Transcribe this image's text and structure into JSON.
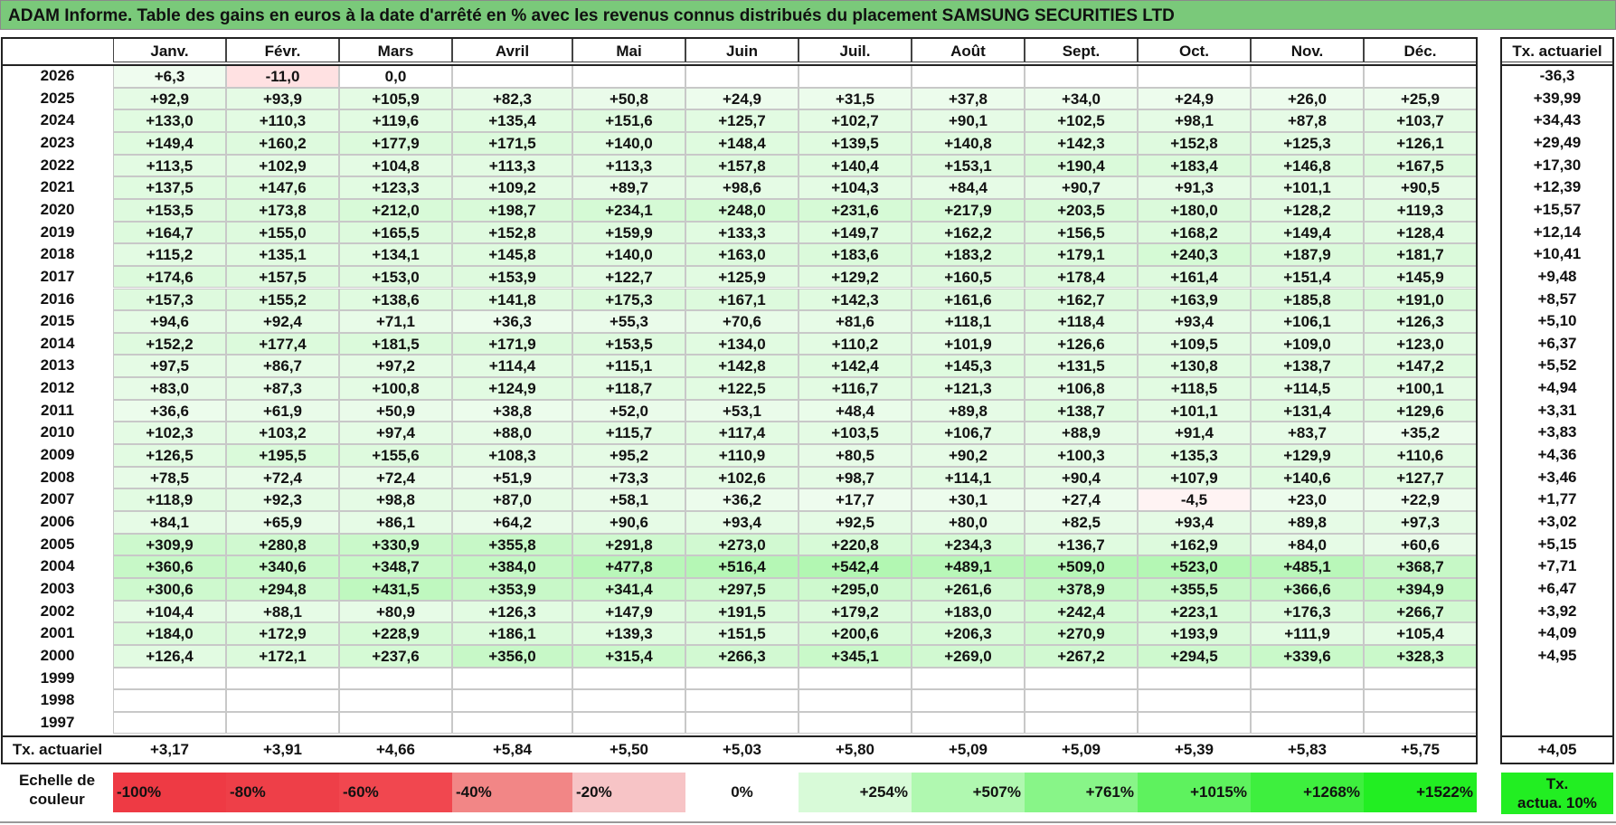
{
  "title": "ADAM Informe. Table des gains en euros à la date d'arrêté en % avec les revenus connus distribués du placement SAMSUNG SECURITIES LTD",
  "months": [
    "Janv.",
    "Févr.",
    "Mars",
    "Avril",
    "Mai",
    "Juin",
    "Juil.",
    "Août",
    "Sept.",
    "Oct.",
    "Nov.",
    "Déc."
  ],
  "rate_header": "Tx. actuariel",
  "rows": [
    {
      "year": "2026",
      "values": [
        "+6,3",
        "-11,0",
        "0,0",
        "",
        "",
        "",
        "",
        "",
        "",
        "",
        "",
        ""
      ],
      "rate": "-36,3"
    },
    {
      "year": "2025",
      "values": [
        "+92,9",
        "+93,9",
        "+105,9",
        "+82,3",
        "+50,8",
        "+24,9",
        "+31,5",
        "+37,8",
        "+34,0",
        "+24,9",
        "+26,0",
        "+25,9"
      ],
      "rate": "+39,99"
    },
    {
      "year": "2024",
      "values": [
        "+133,0",
        "+110,3",
        "+119,6",
        "+135,4",
        "+151,6",
        "+125,7",
        "+102,7",
        "+90,1",
        "+102,5",
        "+98,1",
        "+87,8",
        "+103,7"
      ],
      "rate": "+34,43"
    },
    {
      "year": "2023",
      "values": [
        "+149,4",
        "+160,2",
        "+177,9",
        "+171,5",
        "+140,0",
        "+148,4",
        "+139,5",
        "+140,8",
        "+142,3",
        "+152,8",
        "+125,3",
        "+126,1"
      ],
      "rate": "+29,49"
    },
    {
      "year": "2022",
      "values": [
        "+113,5",
        "+102,9",
        "+104,8",
        "+113,3",
        "+113,3",
        "+157,8",
        "+140,4",
        "+153,1",
        "+190,4",
        "+183,4",
        "+146,8",
        "+167,5"
      ],
      "rate": "+17,30"
    },
    {
      "year": "2021",
      "values": [
        "+137,5",
        "+147,6",
        "+123,3",
        "+109,2",
        "+89,7",
        "+98,6",
        "+104,3",
        "+84,4",
        "+90,7",
        "+91,3",
        "+101,1",
        "+90,5"
      ],
      "rate": "+12,39"
    },
    {
      "year": "2020",
      "values": [
        "+153,5",
        "+173,8",
        "+212,0",
        "+198,7",
        "+234,1",
        "+248,0",
        "+231,6",
        "+217,9",
        "+203,5",
        "+180,0",
        "+128,2",
        "+119,3"
      ],
      "rate": "+15,57"
    },
    {
      "year": "2019",
      "values": [
        "+164,7",
        "+155,0",
        "+165,5",
        "+152,8",
        "+159,9",
        "+133,3",
        "+149,7",
        "+162,2",
        "+156,5",
        "+168,2",
        "+149,4",
        "+128,4"
      ],
      "rate": "+12,14"
    },
    {
      "year": "2018",
      "values": [
        "+115,2",
        "+135,1",
        "+134,1",
        "+145,8",
        "+140,0",
        "+163,0",
        "+183,6",
        "+183,2",
        "+179,1",
        "+240,3",
        "+187,9",
        "+181,7"
      ],
      "rate": "+10,41"
    },
    {
      "year": "2017",
      "values": [
        "+174,6",
        "+157,5",
        "+153,0",
        "+153,9",
        "+122,7",
        "+125,9",
        "+129,2",
        "+160,5",
        "+178,4",
        "+161,4",
        "+151,4",
        "+145,9"
      ],
      "rate": "+9,48"
    },
    {
      "year": "2016",
      "values": [
        "+157,3",
        "+155,2",
        "+138,6",
        "+141,8",
        "+175,3",
        "+167,1",
        "+142,3",
        "+161,6",
        "+162,7",
        "+163,9",
        "+185,8",
        "+191,0"
      ],
      "rate": "+8,57"
    },
    {
      "year": "2015",
      "values": [
        "+94,6",
        "+92,4",
        "+71,1",
        "+36,3",
        "+55,3",
        "+70,6",
        "+81,6",
        "+118,1",
        "+118,4",
        "+93,4",
        "+106,1",
        "+126,3"
      ],
      "rate": "+5,10"
    },
    {
      "year": "2014",
      "values": [
        "+152,2",
        "+177,4",
        "+181,5",
        "+171,9",
        "+153,5",
        "+134,0",
        "+110,2",
        "+101,9",
        "+126,6",
        "+109,5",
        "+109,0",
        "+123,0"
      ],
      "rate": "+6,37"
    },
    {
      "year": "2013",
      "values": [
        "+97,5",
        "+86,7",
        "+97,2",
        "+114,4",
        "+115,1",
        "+142,8",
        "+142,4",
        "+145,3",
        "+131,5",
        "+130,8",
        "+138,7",
        "+147,2"
      ],
      "rate": "+5,52"
    },
    {
      "year": "2012",
      "values": [
        "+83,0",
        "+87,3",
        "+100,8",
        "+124,9",
        "+118,7",
        "+122,5",
        "+116,7",
        "+121,3",
        "+106,8",
        "+118,5",
        "+114,5",
        "+100,1"
      ],
      "rate": "+4,94"
    },
    {
      "year": "2011",
      "values": [
        "+36,6",
        "+61,9",
        "+50,9",
        "+38,8",
        "+52,0",
        "+53,1",
        "+48,4",
        "+89,8",
        "+138,7",
        "+101,1",
        "+131,4",
        "+129,6"
      ],
      "rate": "+3,31"
    },
    {
      "year": "2010",
      "values": [
        "+102,3",
        "+103,2",
        "+97,4",
        "+88,0",
        "+115,7",
        "+117,4",
        "+103,5",
        "+106,7",
        "+88,9",
        "+91,4",
        "+83,7",
        "+35,2"
      ],
      "rate": "+3,83"
    },
    {
      "year": "2009",
      "values": [
        "+126,5",
        "+195,5",
        "+155,6",
        "+108,3",
        "+95,2",
        "+110,9",
        "+80,5",
        "+90,2",
        "+100,3",
        "+135,3",
        "+129,9",
        "+110,6"
      ],
      "rate": "+4,36"
    },
    {
      "year": "2008",
      "values": [
        "+78,5",
        "+72,4",
        "+72,4",
        "+51,9",
        "+73,3",
        "+102,6",
        "+98,7",
        "+114,1",
        "+90,4",
        "+107,9",
        "+140,6",
        "+127,7"
      ],
      "rate": "+3,46"
    },
    {
      "year": "2007",
      "values": [
        "+118,9",
        "+92,3",
        "+98,8",
        "+87,0",
        "+58,1",
        "+36,2",
        "+17,7",
        "+30,1",
        "+27,4",
        "-4,5",
        "+23,0",
        "+22,9"
      ],
      "rate": "+1,77"
    },
    {
      "year": "2006",
      "values": [
        "+84,1",
        "+65,9",
        "+86,1",
        "+64,2",
        "+90,6",
        "+93,4",
        "+92,5",
        "+80,0",
        "+82,5",
        "+93,4",
        "+89,8",
        "+97,3"
      ],
      "rate": "+3,02"
    },
    {
      "year": "2005",
      "values": [
        "+309,9",
        "+280,8",
        "+330,9",
        "+355,8",
        "+291,8",
        "+273,0",
        "+220,8",
        "+234,3",
        "+136,7",
        "+162,9",
        "+84,0",
        "+60,6"
      ],
      "rate": "+5,15"
    },
    {
      "year": "2004",
      "values": [
        "+360,6",
        "+340,6",
        "+348,7",
        "+384,0",
        "+477,8",
        "+516,4",
        "+542,4",
        "+489,1",
        "+509,0",
        "+523,0",
        "+485,1",
        "+368,7"
      ],
      "rate": "+7,71"
    },
    {
      "year": "2003",
      "values": [
        "+300,6",
        "+294,8",
        "+431,5",
        "+353,9",
        "+341,4",
        "+297,5",
        "+295,0",
        "+261,6",
        "+378,9",
        "+355,5",
        "+366,6",
        "+394,9"
      ],
      "rate": "+6,47"
    },
    {
      "year": "2002",
      "values": [
        "+104,4",
        "+88,1",
        "+80,9",
        "+126,3",
        "+147,9",
        "+191,5",
        "+179,2",
        "+183,0",
        "+242,4",
        "+223,1",
        "+176,3",
        "+266,7"
      ],
      "rate": "+3,92"
    },
    {
      "year": "2001",
      "values": [
        "+184,0",
        "+172,9",
        "+228,9",
        "+186,1",
        "+139,3",
        "+151,5",
        "+200,6",
        "+206,3",
        "+270,9",
        "+193,9",
        "+111,9",
        "+105,4"
      ],
      "rate": "+4,09"
    },
    {
      "year": "2000",
      "values": [
        "+126,4",
        "+172,1",
        "+237,6",
        "+356,0",
        "+315,4",
        "+266,3",
        "+345,1",
        "+269,0",
        "+267,2",
        "+294,5",
        "+339,6",
        "+328,3"
      ],
      "rate": "+4,95"
    },
    {
      "year": "1999",
      "values": [
        "",
        "",
        "",
        "",
        "",
        "",
        "",
        "",
        "",
        "",
        "",
        ""
      ],
      "rate": ""
    },
    {
      "year": "1998",
      "values": [
        "",
        "",
        "",
        "",
        "",
        "",
        "",
        "",
        "",
        "",
        "",
        ""
      ],
      "rate": ""
    },
    {
      "year": "1997",
      "values": [
        "",
        "",
        "",
        "",
        "",
        "",
        "",
        "",
        "",
        "",
        "",
        ""
      ],
      "rate": ""
    }
  ],
  "footer": {
    "label": "Tx. actuariel",
    "values": [
      "+3,17",
      "+3,91",
      "+4,66",
      "+5,84",
      "+5,50",
      "+5,03",
      "+5,80",
      "+5,09",
      "+5,09",
      "+5,39",
      "+5,83",
      "+5,75"
    ],
    "rate": "+4,05"
  },
  "legend": {
    "label_line1": "Echelle de",
    "label_line2": "couleur",
    "scale": [
      {
        "label": "-100%",
        "color": "#ee3a44"
      },
      {
        "label": "-80%",
        "color": "#ee3f48"
      },
      {
        "label": "-60%",
        "color": "#f1474f"
      },
      {
        "label": "-40%",
        "color": "#f28686"
      },
      {
        "label": "-20%",
        "color": "#f7c4c6"
      },
      {
        "label": "0%",
        "color": "#ffffff"
      },
      {
        "label": "+254%",
        "color": "#d8fad8"
      },
      {
        "label": "+507%",
        "color": "#b0f8b0"
      },
      {
        "label": "+761%",
        "color": "#88f588"
      },
      {
        "label": "+1015%",
        "color": "#5ef25e"
      },
      {
        "label": "+1268%",
        "color": "#3eef3e"
      },
      {
        "label": "+1522%",
        "color": "#22ee22"
      }
    ],
    "actua_line1": "Tx.",
    "actua_line2": "actua. 10%",
    "actua_color": "#22ee22"
  },
  "colors": {
    "title_bg": "#7ac97a",
    "negative_fill": "#fde3e3",
    "strong_negative_fill": "#f8c8ca"
  }
}
